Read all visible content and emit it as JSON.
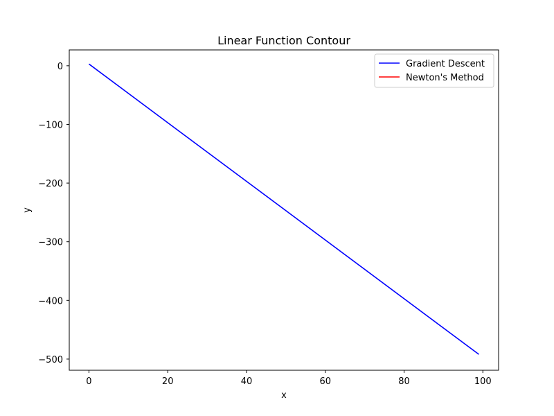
{
  "chart_data": {
    "type": "line",
    "title": "Linear Function Contour",
    "xlabel": "x",
    "ylabel": "y",
    "xlim": [
      -5,
      104
    ],
    "ylim": [
      -519,
      27
    ],
    "xticks": [
      0,
      20,
      40,
      60,
      80,
      100
    ],
    "xtick_labels": [
      "0",
      "20",
      "40",
      "60",
      "80",
      "100"
    ],
    "yticks": [
      0,
      -100,
      -200,
      -300,
      -400,
      -500
    ],
    "ytick_labels": [
      "0",
      "−100",
      "−200",
      "−300",
      "−400",
      "−500"
    ],
    "grid": false,
    "legend_position": "top-right",
    "series": [
      {
        "name": "Gradient Descent",
        "color": "#0000ff",
        "x": [
          0,
          99
        ],
        "y": [
          3,
          -492
        ]
      },
      {
        "name": "Newton's Method",
        "color": "#ff0000",
        "x": [],
        "y": []
      }
    ]
  }
}
